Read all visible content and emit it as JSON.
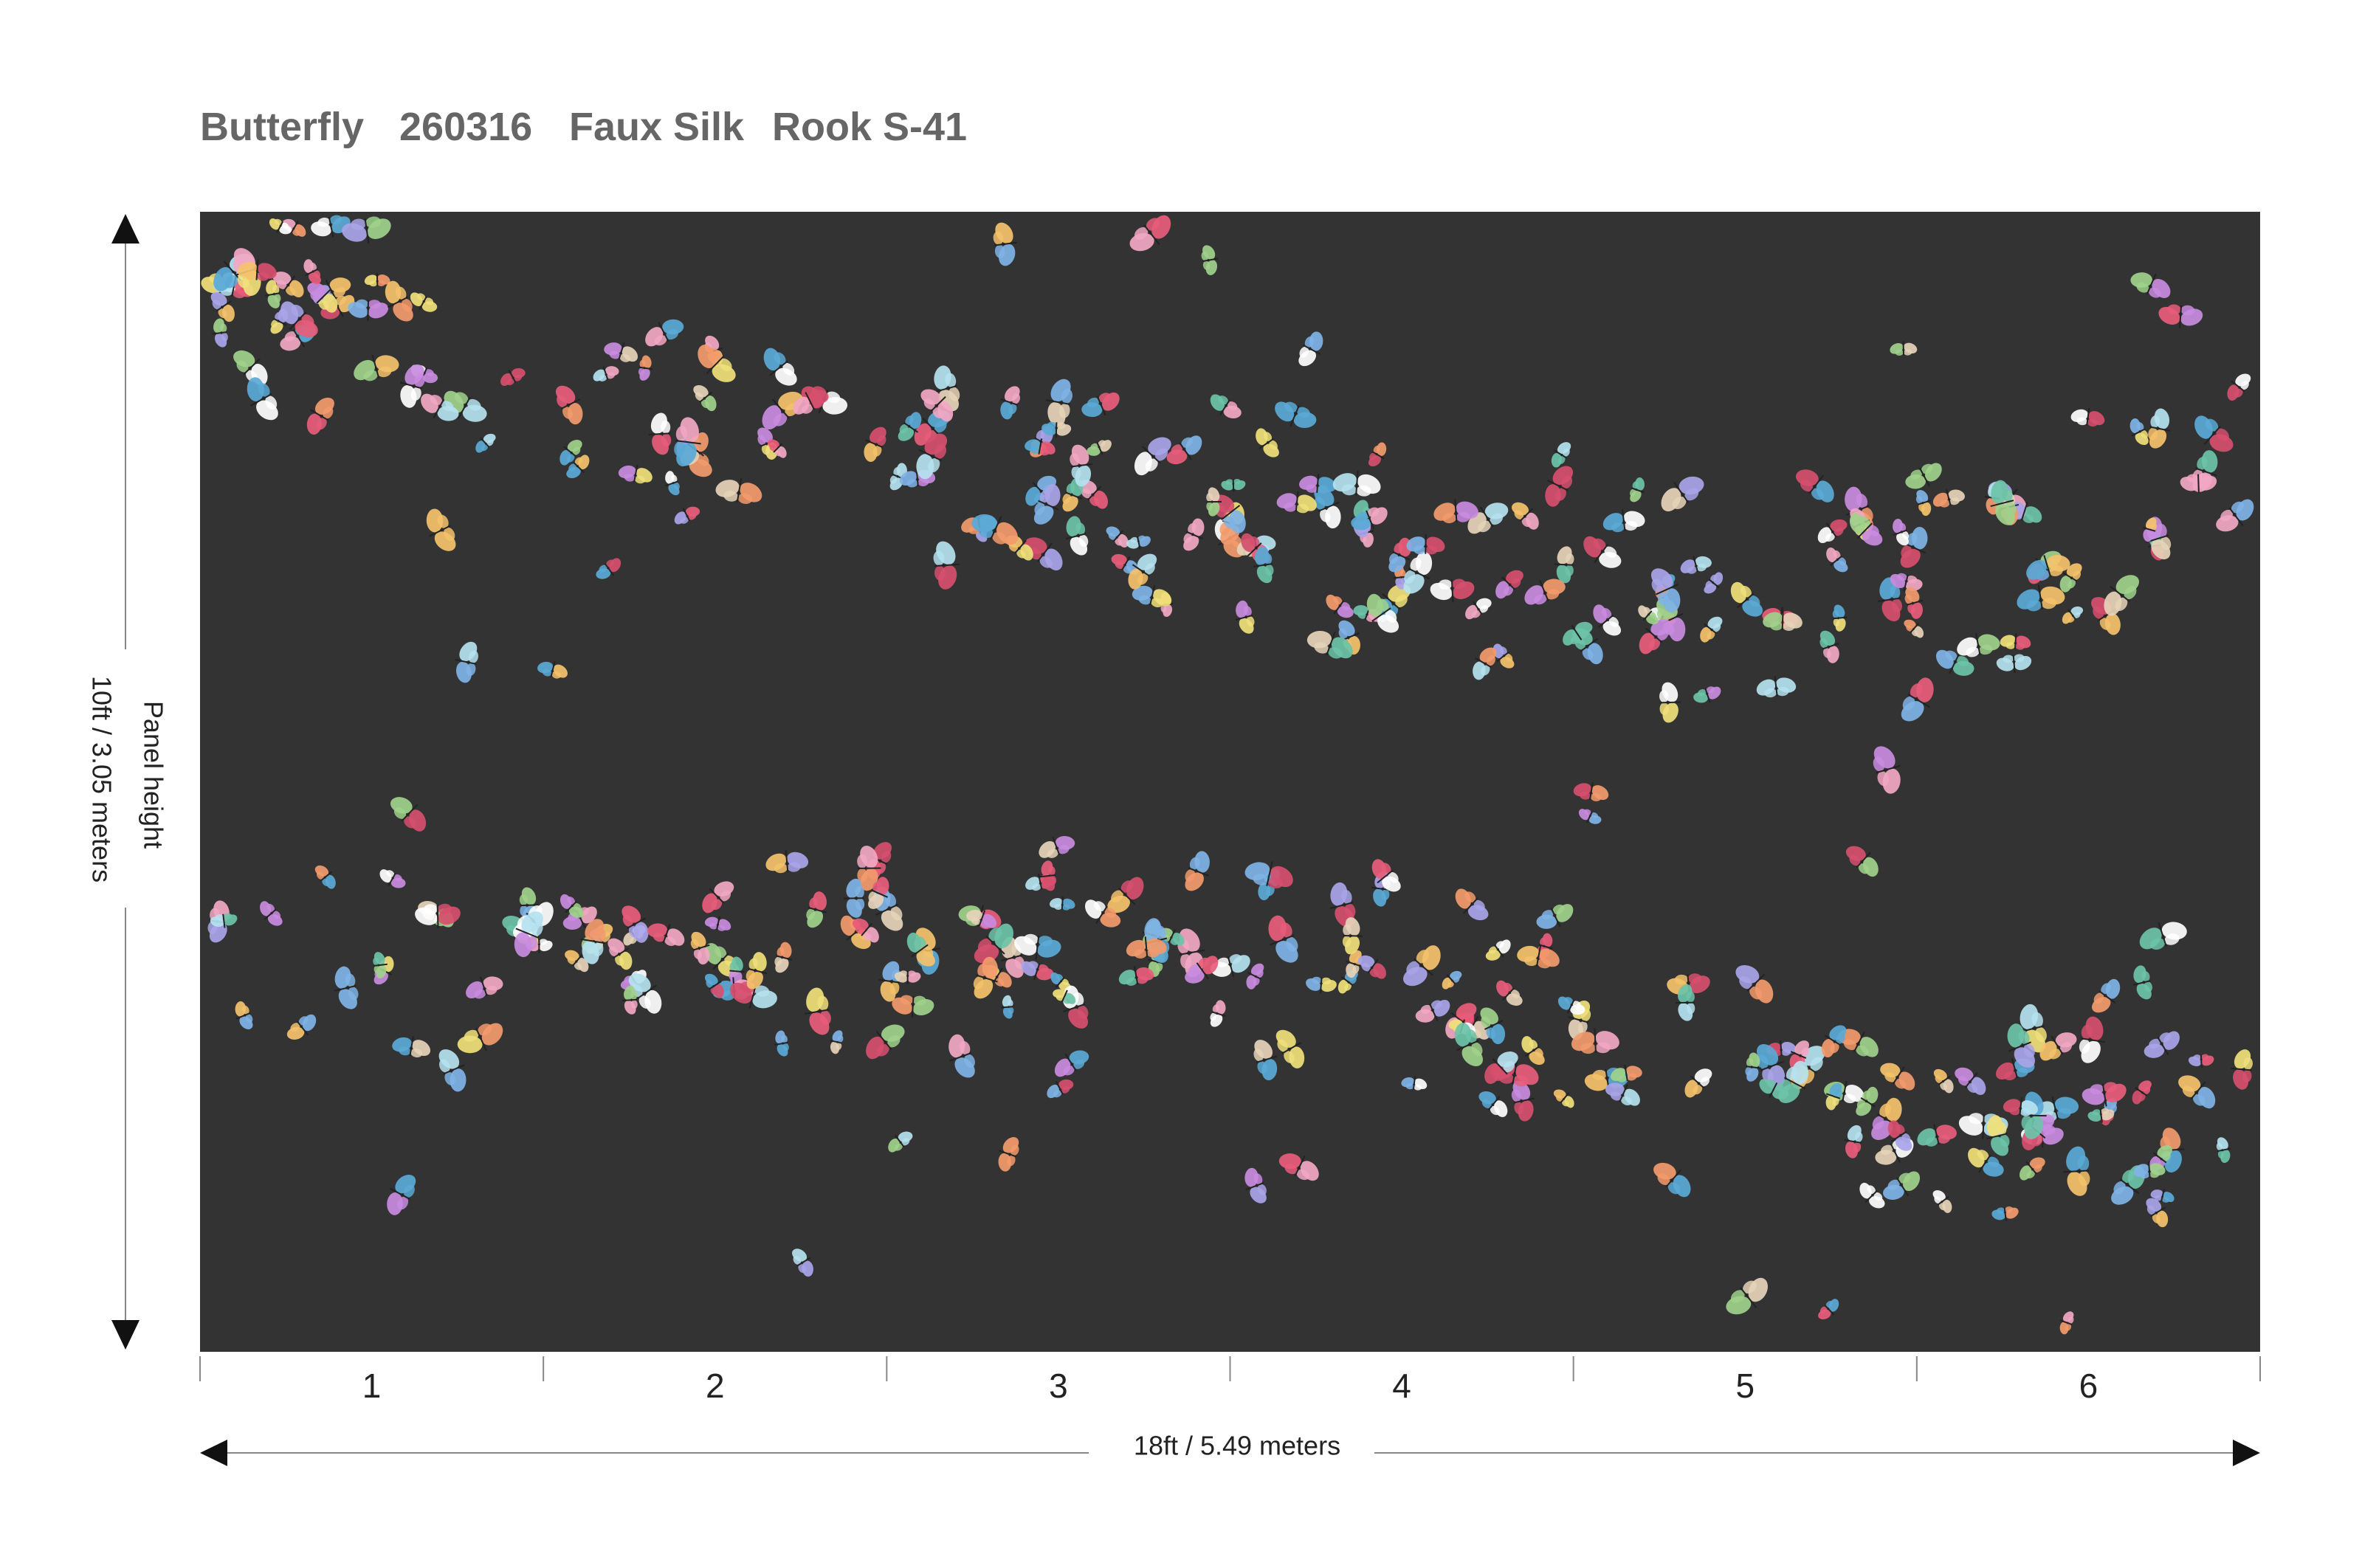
{
  "header": {
    "title_parts": [
      "Butterfly",
      "260316",
      "Faux Silk",
      "Rook S-41"
    ]
  },
  "panels": [
    "1",
    "2",
    "3",
    "4",
    "5",
    "6"
  ],
  "width_label": "18ft / 5.49 meters",
  "height_label": {
    "name": "Panel height",
    "size": "10ft / 3.05 meters"
  }
}
